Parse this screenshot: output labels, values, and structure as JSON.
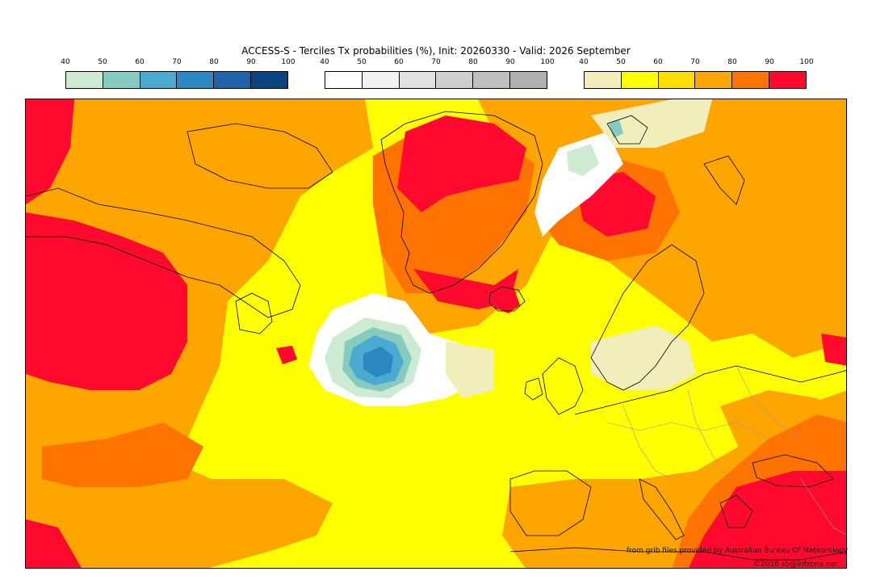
{
  "title": "ACCESS-S - Terciles Tx probabilities (%), Init: 20260330 - Valid: 2026 September",
  "legends": [
    {
      "ticks": [
        "40",
        "50",
        "60",
        "70",
        "80",
        "90",
        "100"
      ],
      "colors": [
        "#cdebd0",
        "#86cbc0",
        "#4aaad0",
        "#2c88c0",
        "#1f64a8",
        "#0b4282"
      ]
    },
    {
      "ticks": [
        "40",
        "50",
        "60",
        "70",
        "80",
        "90",
        "100"
      ],
      "colors": [
        "#ffffff",
        "#f2f2f2",
        "#e1e1e1",
        "#cfcfcf",
        "#bfbfbf",
        "#b0b0b0"
      ]
    },
    {
      "ticks": [
        "40",
        "50",
        "60",
        "70",
        "80",
        "90",
        "100"
      ],
      "colors": [
        "#f1eebc",
        "#ffff00",
        "#ffdf00",
        "#ffa500",
        "#ff7300",
        "#ff0a2e"
      ]
    }
  ],
  "credits": {
    "source": "from grib files provided by Australian Bureau Of Meteorology",
    "copyright": "©2026 sb@infzone.net"
  }
}
